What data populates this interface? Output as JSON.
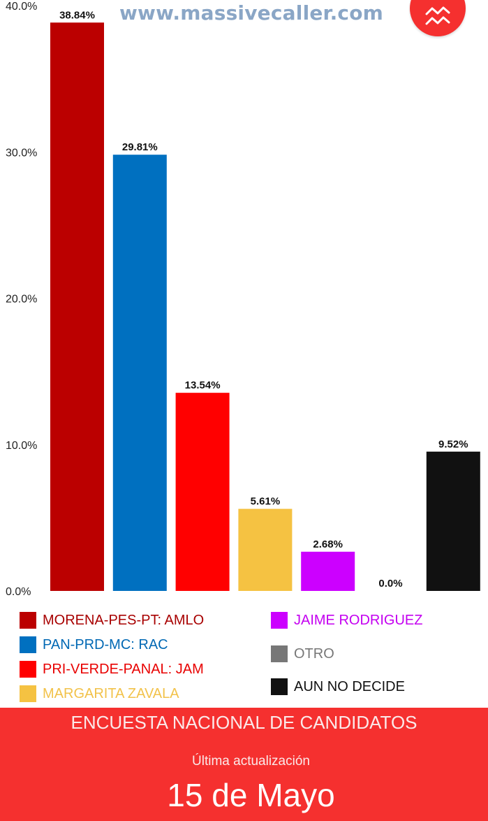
{
  "site": {
    "url": "www.massivecaller.com"
  },
  "fab": {
    "icon": "trend-lines-icon",
    "color": "#f5302f"
  },
  "chart_data": {
    "type": "bar",
    "categories": [
      "MORENA-PES-PT: AMLO",
      "PAN-PRD-MC: RAC",
      "PRI-VERDE-PANAL: JAM",
      "MARGARITA ZAVALA",
      "JAIME RODRIGUEZ",
      "OTRO",
      "AUN NO DECIDE"
    ],
    "values": [
      38.84,
      29.81,
      13.54,
      5.61,
      2.68,
      0.0,
      9.52
    ],
    "value_labels": [
      "38.84%",
      "29.81%",
      "13.54%",
      "5.61%",
      "2.68%",
      "0.0%",
      "9.52%"
    ],
    "colors": [
      "#bb0000",
      "#0070c0",
      "#ff0000",
      "#f5c242",
      "#cc00ff",
      "#777777",
      "#111111"
    ],
    "ylim": [
      0,
      40
    ],
    "yticks": [
      0,
      10,
      20,
      30,
      40
    ],
    "ytick_labels": [
      "0.0%",
      "10.0%",
      "20.0%",
      "30.0%",
      "40.0%"
    ],
    "grid": false,
    "legend_position": "bottom"
  },
  "legend": {
    "items": [
      {
        "label": "MORENA-PES-PT: AMLO",
        "color": "#bb0000",
        "text_color": "#a80000"
      },
      {
        "label": "PAN-PRD-MC: RAC",
        "color": "#0070c0",
        "text_color": "#0068b4"
      },
      {
        "label": "PRI-VERDE-PANAL: JAM",
        "color": "#ff0000",
        "text_color": "#e80000"
      },
      {
        "label": "MARGARITA ZAVALA",
        "color": "#f5c242",
        "text_color": "#f2c24a"
      },
      {
        "label": "JAIME RODRIGUEZ",
        "color": "#cc00ff",
        "text_color": "#c400f0"
      },
      {
        "label": "OTRO",
        "color": "#777777",
        "text_color": "#777777"
      },
      {
        "label": "AUN NO DECIDE",
        "color": "#111111",
        "text_color": "#111111"
      }
    ]
  },
  "footer": {
    "title": "ENCUESTA NACIONAL DE CANDIDATOS",
    "updated_label": "Última actualización",
    "date": "15 de Mayo",
    "background": "#f5302f"
  }
}
